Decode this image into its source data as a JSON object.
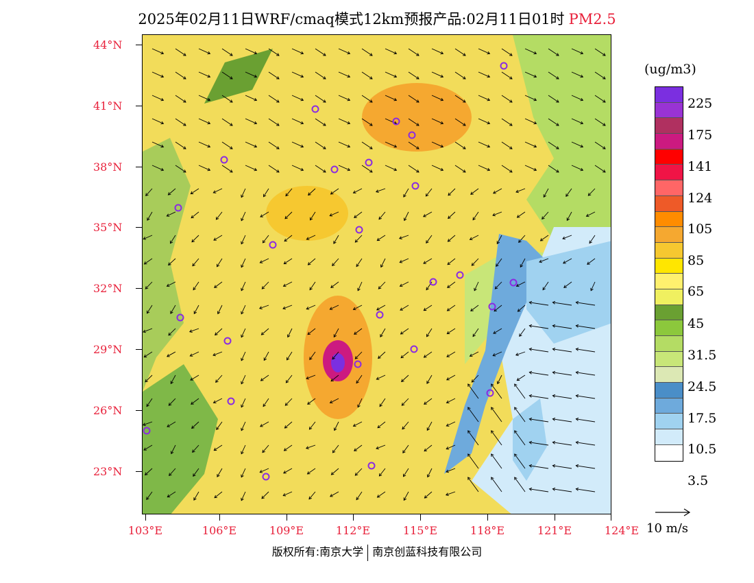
{
  "title": {
    "main": "2025年02月11日WRF/cmaq模式12km预报产品:02月11日01时",
    "pollutant": "PM2.5"
  },
  "axes": {
    "lat_labels": [
      "44°N",
      "41°N",
      "38°N",
      "35°N",
      "32°N",
      "29°N",
      "26°N",
      "23°N"
    ],
    "lon_labels": [
      "103°E",
      "106°E",
      "109°E",
      "112°E",
      "115°E",
      "118°E",
      "121°E",
      "124°E"
    ]
  },
  "legend": {
    "units": "(ug/m3)",
    "colors": [
      "#7b2fe0",
      "#9933d4",
      "#b03060",
      "#cc1a80",
      "#ff0000",
      "#f01446",
      "#ff6666",
      "#ee5a28",
      "#ff8c00",
      "#f5a830",
      "#f6c830",
      "#ffe600",
      "#fff06e",
      "#f0f060",
      "#6aa032",
      "#8cc83c",
      "#b4dc64",
      "#c8e678",
      "#dce8b4",
      "#4a8ec8",
      "#6eaadc",
      "#a0d2f0",
      "#d2ebfa",
      "#ffffff"
    ],
    "labels": [
      "225",
      "175",
      "141",
      "124",
      "105",
      "85",
      "65",
      "45",
      "31.5",
      "24.5",
      "17.5",
      "10.5",
      "3.5"
    ],
    "wind_reference": "10 m/s"
  },
  "copyright": {
    "left": "版权所有:南京大学",
    "right": "南京创蓝科技有限公司"
  }
}
